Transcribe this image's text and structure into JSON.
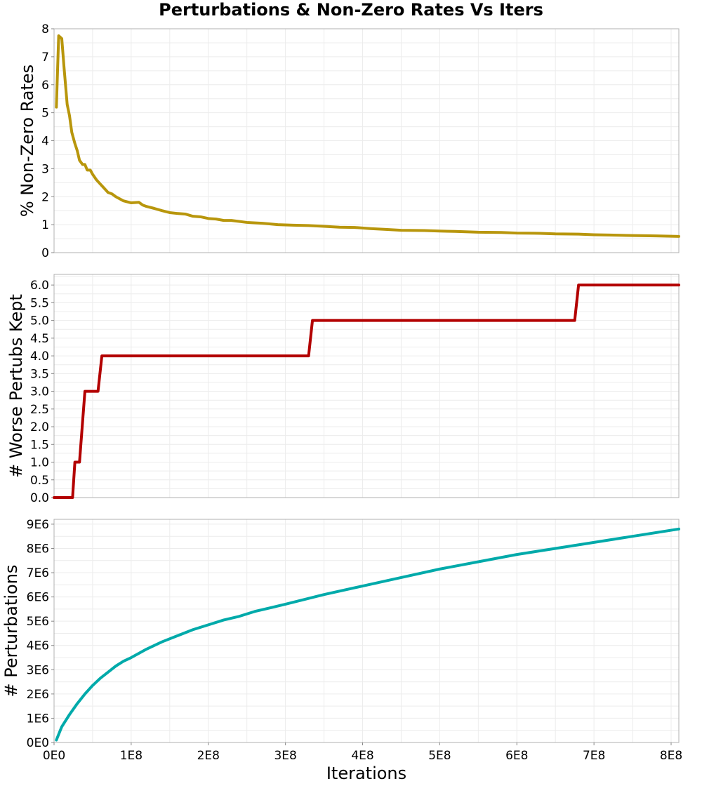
{
  "figure_title": "Perturbations & Non-Zero Rates Vs Iters",
  "shared_xlabel": "Iterations",
  "x_tick_labels": [
    "0E0",
    "1E8",
    "2E8",
    "3E8",
    "4E8",
    "5E8",
    "6E8",
    "7E8",
    "8E8"
  ],
  "chart_data": [
    {
      "type": "line",
      "ylabel": "% Non-Zero Rates",
      "xlim": [
        0,
        810000000
      ],
      "ylim": [
        0,
        8
      ],
      "yticks": [
        0,
        1,
        2,
        3,
        4,
        5,
        6,
        7,
        8
      ],
      "ytick_labels": [
        "0",
        "1",
        "2",
        "3",
        "4",
        "5",
        "6",
        "7",
        "8"
      ],
      "grid": true,
      "color": "#b8960c",
      "series": [
        {
          "x": [
            3000000,
            6000000,
            10000000,
            13000000,
            17000000,
            20000000,
            23000000,
            27000000,
            30000000,
            33000000,
            37000000,
            40000000,
            43000000,
            47000000,
            50000000,
            55000000,
            60000000,
            65000000,
            70000000,
            75000000,
            80000000,
            90000000,
            100000000,
            110000000,
            115000000,
            120000000,
            130000000,
            140000000,
            150000000,
            160000000,
            170000000,
            180000000,
            190000000,
            200000000,
            210000000,
            220000000,
            230000000,
            250000000,
            270000000,
            290000000,
            310000000,
            330000000,
            350000000,
            370000000,
            390000000,
            410000000,
            430000000,
            450000000,
            480000000,
            500000000,
            520000000,
            550000000,
            580000000,
            600000000,
            630000000,
            650000000,
            680000000,
            700000000,
            720000000,
            750000000,
            780000000,
            810000000
          ],
          "y": [
            5.2,
            7.75,
            7.65,
            6.6,
            5.3,
            4.9,
            4.3,
            3.9,
            3.65,
            3.3,
            3.15,
            3.15,
            2.95,
            2.95,
            2.8,
            2.6,
            2.45,
            2.3,
            2.15,
            2.1,
            2.0,
            1.85,
            1.78,
            1.8,
            1.7,
            1.65,
            1.58,
            1.5,
            1.43,
            1.4,
            1.38,
            1.3,
            1.28,
            1.22,
            1.2,
            1.15,
            1.15,
            1.08,
            1.05,
            1.0,
            0.98,
            0.97,
            0.94,
            0.91,
            0.9,
            0.86,
            0.83,
            0.8,
            0.79,
            0.77,
            0.76,
            0.73,
            0.72,
            0.7,
            0.69,
            0.67,
            0.66,
            0.64,
            0.63,
            0.61,
            0.6,
            0.58
          ]
        }
      ]
    },
    {
      "type": "line",
      "ylabel": "# Worse Pertubs Kept",
      "xlim": [
        0,
        810000000
      ],
      "ylim": [
        0,
        6.3
      ],
      "yticks": [
        0,
        0.5,
        1,
        1.5,
        2,
        2.5,
        3,
        3.5,
        4,
        4.5,
        5,
        5.5,
        6
      ],
      "ytick_labels": [
        "0.0",
        "0.5",
        "1.0",
        "1.5",
        "2.0",
        "2.5",
        "3.0",
        "3.5",
        "4.0",
        "4.5",
        "5.0",
        "5.5",
        "6.0"
      ],
      "grid": true,
      "color": "#b30000",
      "series": [
        {
          "x": [
            0,
            24000000,
            27000000,
            33000000,
            40000000,
            57000000,
            62000000,
            330000000,
            335000000,
            675000000,
            680000000,
            810000000
          ],
          "y": [
            0,
            0,
            1,
            1,
            3,
            3,
            4,
            4,
            5,
            5,
            6,
            6
          ]
        }
      ]
    },
    {
      "type": "line",
      "ylabel": "# Perturbations",
      "xlabel": "Iterations",
      "xlim": [
        0,
        810000000
      ],
      "ylim": [
        0,
        9200000
      ],
      "yticks": [
        0,
        1000000,
        2000000,
        3000000,
        4000000,
        5000000,
        6000000,
        7000000,
        8000000,
        9000000
      ],
      "ytick_labels": [
        "0E0",
        "1E6",
        "2E6",
        "3E6",
        "4E6",
        "5E6",
        "6E6",
        "7E6",
        "8E6",
        "9E6"
      ],
      "grid": true,
      "color": "#00aaaa",
      "series": [
        {
          "x": [
            3000000,
            10000000,
            20000000,
            30000000,
            40000000,
            50000000,
            60000000,
            70000000,
            80000000,
            90000000,
            100000000,
            120000000,
            140000000,
            160000000,
            180000000,
            200000000,
            220000000,
            240000000,
            260000000,
            280000000,
            300000000,
            350000000,
            400000000,
            450000000,
            500000000,
            550000000,
            600000000,
            650000000,
            700000000,
            750000000,
            810000000
          ],
          "y": [
            100000,
            650000,
            1150000,
            1600000,
            2000000,
            2350000,
            2650000,
            2900000,
            3150000,
            3350000,
            3500000,
            3850000,
            4150000,
            4400000,
            4650000,
            4850000,
            5050000,
            5200000,
            5400000,
            5550000,
            5700000,
            6100000,
            6450000,
            6800000,
            7150000,
            7450000,
            7750000,
            8000000,
            8250000,
            8500000,
            8800000
          ]
        }
      ]
    }
  ]
}
